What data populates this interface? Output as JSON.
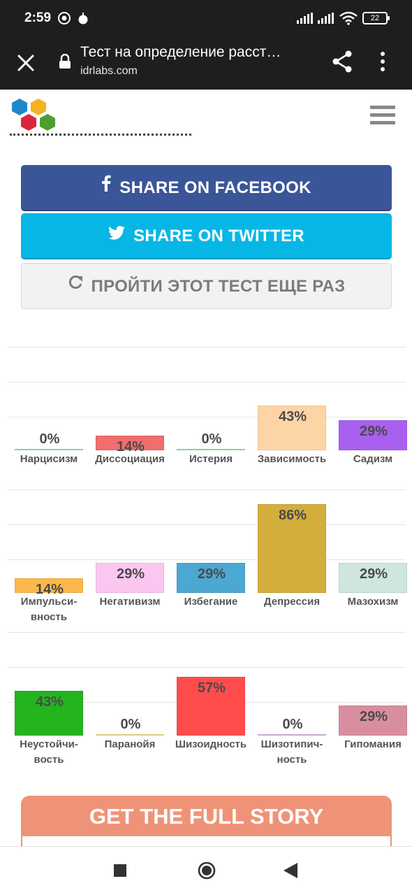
{
  "status_bar": {
    "time": "2:59",
    "battery": "22"
  },
  "browser": {
    "title": "Тест на определение расст…",
    "url": "idrlabs.com"
  },
  "buttons": {
    "facebook": "SHARE ON FACEBOOK",
    "twitter": "SHARE ON TWITTER",
    "retake": "ПРОЙТИ ЭТОТ ТЕСТ ЕЩЕ РАЗ"
  },
  "chart_data": [
    {
      "type": "bar",
      "ylim": [
        0,
        100
      ],
      "categories": [
        "Нарцисизм",
        "Диссоциация",
        "Истерия",
        "Зависимость",
        "Садизм"
      ],
      "values": [
        0,
        14,
        0,
        43,
        29
      ],
      "value_labels": [
        "0%",
        "14%",
        "0%",
        "43%",
        "29%"
      ],
      "colors": [
        "#9fd7d2",
        "#f26d6d",
        "#9ee09e",
        "#fdd4a6",
        "#a85ff0"
      ]
    },
    {
      "type": "bar",
      "ylim": [
        0,
        100
      ],
      "categories": [
        "Импульси-вность",
        "Негативизм",
        "Избегание",
        "Депрессия",
        "Мазохизм"
      ],
      "values": [
        14,
        29,
        29,
        86,
        29
      ],
      "value_labels": [
        "14%",
        "29%",
        "29%",
        "86%",
        "29%"
      ],
      "colors": [
        "#fdb84a",
        "#fbc6ef",
        "#4ba8d2",
        "#d4ae3d",
        "#cfe5df"
      ]
    },
    {
      "type": "bar",
      "ylim": [
        0,
        100
      ],
      "categories": [
        "Неустойчи-вость",
        "Паранойя",
        "Шизоидность",
        "Шизотипич-ность",
        "Гипомания"
      ],
      "values": [
        43,
        0,
        57,
        0,
        29
      ],
      "value_labels": [
        "43%",
        "0%",
        "57%",
        "0%",
        "29%"
      ],
      "colors": [
        "#23b41e",
        "#f3e084",
        "#ff4d4d",
        "#d6b6e9",
        "#d98e9f"
      ]
    }
  ],
  "story": {
    "title": "GET THE FULL STORY"
  }
}
